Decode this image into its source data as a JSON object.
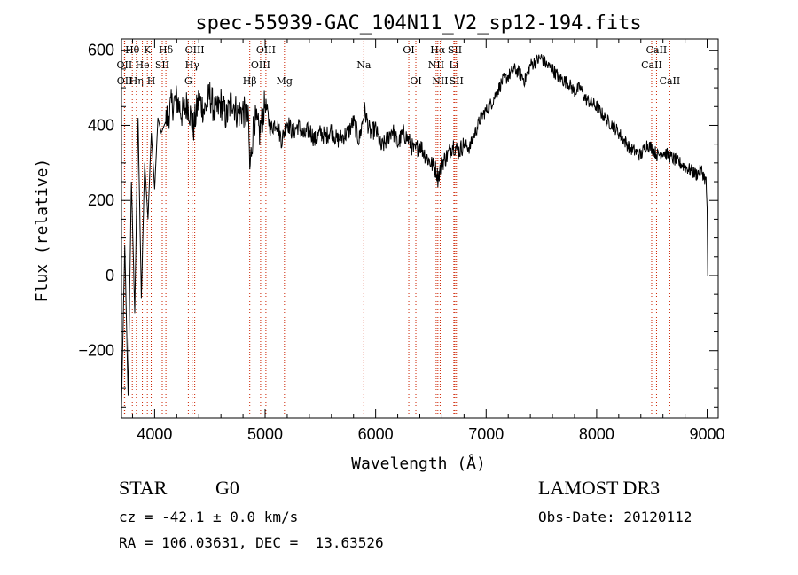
{
  "chart_data": {
    "type": "line",
    "title": "spec-55939-GAC_104N11_V2_sp12-194.fits",
    "xlabel": "Wavelength (Å)",
    "ylabel": "Flux (relative)",
    "xlim": [
      3700,
      9100
    ],
    "ylim": [
      -380,
      630
    ],
    "xticks": [
      4000,
      5000,
      6000,
      7000,
      8000,
      9000
    ],
    "yticks": [
      -200,
      0,
      200,
      400,
      600
    ],
    "series": [
      {
        "name": "flux",
        "x": [
          3700,
          3730,
          3760,
          3790,
          3820,
          3850,
          3880,
          3910,
          3940,
          3970,
          4000,
          4030,
          4060,
          4100,
          4150,
          4200,
          4250,
          4300,
          4350,
          4400,
          4450,
          4500,
          4550,
          4600,
          4650,
          4700,
          4750,
          4800,
          4850,
          4861,
          4900,
          4950,
          5000,
          5050,
          5100,
          5150,
          5200,
          5250,
          5300,
          5350,
          5400,
          5450,
          5500,
          5550,
          5600,
          5650,
          5700,
          5750,
          5800,
          5850,
          5900,
          5950,
          6000,
          6050,
          6100,
          6150,
          6200,
          6250,
          6300,
          6350,
          6400,
          6450,
          6500,
          6550,
          6563,
          6600,
          6650,
          6700,
          6750,
          6800,
          6850,
          6900,
          6950,
          7000,
          7050,
          7100,
          7150,
          7200,
          7250,
          7300,
          7350,
          7400,
          7450,
          7500,
          7550,
          7600,
          7650,
          7700,
          7750,
          7800,
          7850,
          7900,
          7950,
          8000,
          8050,
          8100,
          8150,
          8200,
          8250,
          8300,
          8350,
          8400,
          8450,
          8500,
          8550,
          8600,
          8650,
          8700,
          8750,
          8800,
          8850,
          8900,
          8950,
          8990,
          9000,
          9005
        ],
        "y": [
          -350,
          80,
          -320,
          250,
          -100,
          420,
          -60,
          300,
          150,
          380,
          230,
          420,
          380,
          410,
          450,
          470,
          430,
          460,
          390,
          470,
          440,
          480,
          430,
          460,
          420,
          470,
          430,
          440,
          410,
          280,
          420,
          380,
          460,
          390,
          410,
          360,
          410,
          380,
          400,
          370,
          390,
          360,
          380,
          370,
          390,
          360,
          370,
          380,
          410,
          360,
          440,
          380,
          390,
          340,
          360,
          390,
          350,
          380,
          360,
          330,
          350,
          320,
          300,
          280,
          260,
          300,
          320,
          350,
          330,
          350,
          340,
          380,
          420,
          440,
          460,
          490,
          520,
          530,
          550,
          540,
          520,
          560,
          570,
          580,
          560,
          550,
          530,
          520,
          510,
          490,
          500,
          470,
          460,
          450,
          430,
          410,
          400,
          380,
          360,
          340,
          330,
          320,
          350,
          340,
          320,
          330,
          320,
          310,
          300,
          290,
          280,
          270,
          280,
          250,
          180,
          0
        ]
      }
    ],
    "lines": [
      {
        "name": "Hθ",
        "x": 3798,
        "row": 1
      },
      {
        "name": "OII",
        "x": 3727,
        "row": 2
      },
      {
        "name": "OII",
        "x": 3729,
        "row": 3
      },
      {
        "name": "Hη",
        "x": 3835,
        "row": 3
      },
      {
        "name": "K",
        "x": 3934,
        "row": 1
      },
      {
        "name": "H",
        "x": 3969,
        "row": 3
      },
      {
        "name": "He",
        "x": 3889,
        "row": 2
      },
      {
        "name": "SII",
        "x": 4069,
        "row": 2
      },
      {
        "name": "Hδ",
        "x": 4102,
        "row": 1
      },
      {
        "name": "OIII",
        "x": 4363,
        "row": 1
      },
      {
        "name": "Hγ",
        "x": 4340,
        "row": 2
      },
      {
        "name": "G",
        "x": 4305,
        "row": 3
      },
      {
        "name": "OIII",
        "x": 5007,
        "row": 1
      },
      {
        "name": "OIII",
        "x": 4959,
        "row": 2
      },
      {
        "name": "Hβ",
        "x": 4861,
        "row": 3
      },
      {
        "name": "Mg",
        "x": 5175,
        "row": 3
      },
      {
        "name": "Na",
        "x": 5893,
        "row": 2
      },
      {
        "name": "OI",
        "x": 6300,
        "row": 1
      },
      {
        "name": "OI",
        "x": 6364,
        "row": 3
      },
      {
        "name": "Hα",
        "x": 6563,
        "row": 1
      },
      {
        "name": "SII",
        "x": 6717,
        "row": 1
      },
      {
        "name": "NII",
        "x": 6548,
        "row": 2
      },
      {
        "name": "Li",
        "x": 6708,
        "row": 2
      },
      {
        "name": "NII",
        "x": 6584,
        "row": 3
      },
      {
        "name": "SII",
        "x": 6731,
        "row": 3
      },
      {
        "name": "CaII",
        "x": 8542,
        "row": 1
      },
      {
        "name": "CaII",
        "x": 8498,
        "row": 2
      },
      {
        "name": "CaII",
        "x": 8662,
        "row": 3
      }
    ]
  },
  "info": {
    "class": "STAR",
    "subclass": "G0",
    "survey": "LAMOST DR3",
    "cz": "cz = -42.1 ± 0.0 km/s",
    "obs_date": "Obs-Date: 20120112",
    "coords": "RA = 106.03631, DEC =  13.63526"
  },
  "colors": {
    "line_marker": "#cc2200",
    "spectrum": "#000000"
  }
}
